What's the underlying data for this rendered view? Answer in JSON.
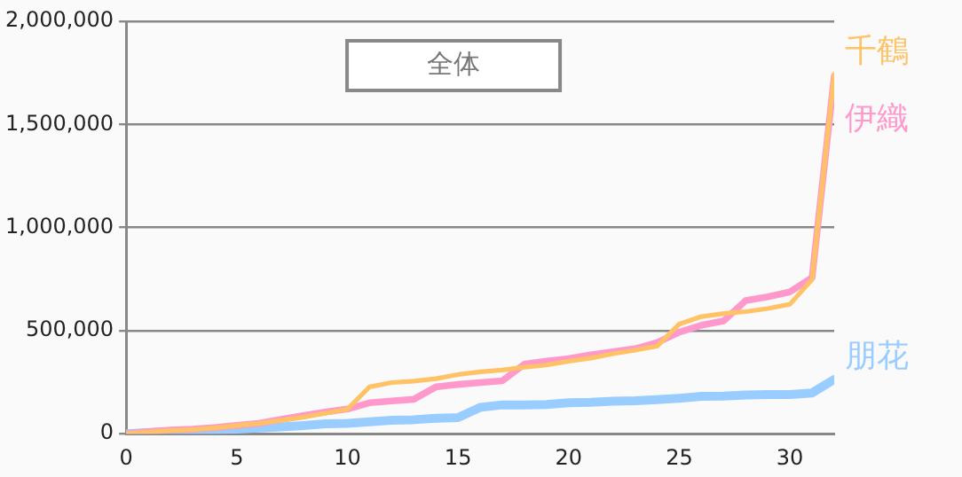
{
  "chart_data": {
    "type": "line",
    "title": "全体",
    "x": [
      0,
      1,
      2,
      3,
      4,
      5,
      6,
      7,
      8,
      9,
      10,
      11,
      12,
      13,
      14,
      15,
      16,
      17,
      18,
      19,
      20,
      21,
      22,
      23,
      24,
      25,
      26,
      27,
      28,
      29,
      30,
      31,
      32
    ],
    "series": [
      {
        "name": "千鶴",
        "color": "#ffc266",
        "values": [
          0,
          8000,
          15000,
          20000,
          28000,
          40000,
          50000,
          65000,
          80000,
          100000,
          119000,
          227000,
          248000,
          255000,
          267000,
          287000,
          300000,
          309000,
          323000,
          333000,
          352000,
          367000,
          388000,
          405000,
          425000,
          532000,
          568000,
          583000,
          592000,
          607000,
          628000,
          748000,
          1743000
        ]
      },
      {
        "name": "伊織",
        "color": "#ff99cc",
        "values": [
          0,
          10000,
          18000,
          22000,
          30000,
          40000,
          50000,
          70000,
          88000,
          105000,
          120000,
          150000,
          159000,
          167000,
          227000,
          239000,
          248000,
          257000,
          337000,
          352000,
          364000,
          382000,
          397000,
          412000,
          442000,
          493000,
          526000,
          547000,
          646000,
          664000,
          688000,
          757000,
          1733000
        ]
      },
      {
        "name": "朋花",
        "color": "#99ccff",
        "values": [
          0,
          5000,
          10000,
          12000,
          18000,
          22000,
          28000,
          33000,
          40000,
          48000,
          50000,
          58000,
          65000,
          68000,
          75000,
          78000,
          128000,
          140000,
          140000,
          142000,
          150000,
          152000,
          158000,
          160000,
          165000,
          172000,
          181000,
          182000,
          188000,
          190000,
          190000,
          198000,
          263000
        ]
      }
    ],
    "xlim": [
      0,
      32
    ],
    "xticks": [
      0,
      5,
      10,
      15,
      20,
      25,
      30
    ],
    "ylim": [
      0,
      2000000
    ],
    "yticks": [
      0,
      {
        "value": 500000,
        "label": "500,000"
      },
      {
        "value": 1000000,
        "label": "1,000,000"
      },
      {
        "value": 1500000,
        "label": "1,500,000"
      },
      {
        "value": 2000000,
        "label": "2,000,000"
      }
    ],
    "grid": "y",
    "legend": false,
    "marker": "none",
    "line_style": "solid"
  }
}
